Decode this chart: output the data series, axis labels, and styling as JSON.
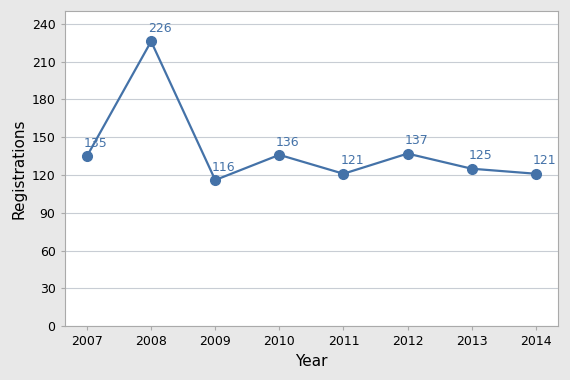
{
  "years": [
    2007,
    2008,
    2009,
    2010,
    2011,
    2012,
    2013,
    2014
  ],
  "values": [
    135,
    226,
    116,
    136,
    121,
    137,
    125,
    121
  ],
  "xlabel": "Year",
  "ylabel": "Registrations",
  "ylim": [
    0,
    250
  ],
  "yticks": [
    0,
    30,
    60,
    90,
    120,
    150,
    180,
    210,
    240
  ],
  "line_color": "#4472a8",
  "marker_color": "#4472a8",
  "marker_size": 7,
  "line_width": 1.6,
  "annotation_fontsize": 9,
  "axis_label_fontsize": 11,
  "tick_fontsize": 9,
  "background_color": "#e8e8e8",
  "plot_bg_color": "#ffffff",
  "grid_color": "#c8cdd4",
  "spine_color": "#aaaaaa"
}
